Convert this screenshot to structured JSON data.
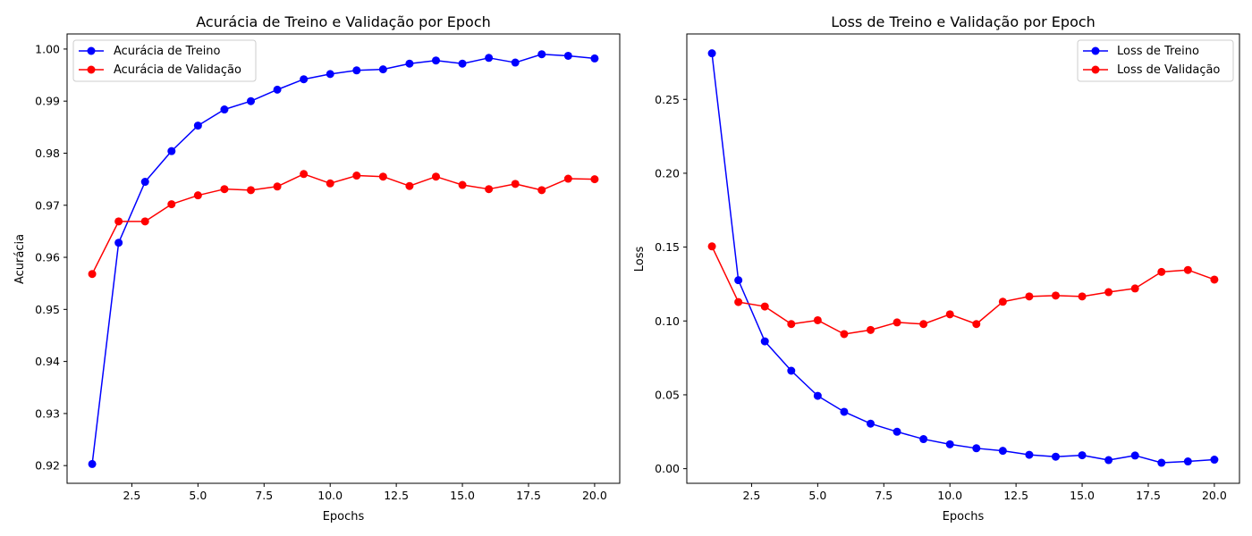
{
  "chart_data": [
    {
      "type": "line",
      "title": "Acurácia de Treino e Validação por Epoch",
      "xlabel": "Epochs",
      "ylabel": "Acurácia",
      "xlim": [
        0.05,
        20.95
      ],
      "ylim": [
        0.9166,
        1.0029
      ],
      "xticks": [
        2.5,
        5.0,
        7.5,
        10.0,
        12.5,
        15.0,
        17.5,
        20.0
      ],
      "xtick_labels": [
        "2.5",
        "5.0",
        "7.5",
        "10.0",
        "12.5",
        "15.0",
        "17.5",
        "20.0"
      ],
      "yticks": [
        0.92,
        0.93,
        0.94,
        0.95,
        0.96,
        0.97,
        0.98,
        0.99,
        1.0
      ],
      "ytick_labels": [
        "0.92",
        "0.93",
        "0.94",
        "0.95",
        "0.96",
        "0.97",
        "0.98",
        "0.99",
        "1.00"
      ],
      "grid": false,
      "legend_position": "top-left",
      "x": [
        1,
        2,
        3,
        4,
        5,
        6,
        7,
        8,
        9,
        10,
        11,
        12,
        13,
        14,
        15,
        16,
        17,
        18,
        19,
        20
      ],
      "series": [
        {
          "name": "Acurácia de Treino",
          "color": "#0000ff",
          "values": [
            0.9203,
            0.9628,
            0.9745,
            0.9804,
            0.9853,
            0.9884,
            0.99,
            0.9922,
            0.9942,
            0.9952,
            0.9959,
            0.9961,
            0.9972,
            0.9978,
            0.9972,
            0.9983,
            0.9974,
            0.999,
            0.9987,
            0.9982
          ]
        },
        {
          "name": "Acurácia de Validação",
          "color": "#ff0000",
          "values": [
            0.9568,
            0.9669,
            0.9669,
            0.9702,
            0.9719,
            0.9731,
            0.9729,
            0.9736,
            0.976,
            0.9742,
            0.9757,
            0.9755,
            0.9737,
            0.9755,
            0.9739,
            0.9731,
            0.9741,
            0.9729,
            0.9751,
            0.975
          ]
        }
      ]
    },
    {
      "type": "line",
      "title": "Loss de Treino e Validação por Epoch",
      "xlabel": "Epochs",
      "ylabel": "Loss",
      "xlim": [
        0.05,
        20.95
      ],
      "ylim": [
        -0.0099,
        0.2943
      ],
      "xticks": [
        2.5,
        5.0,
        7.5,
        10.0,
        12.5,
        15.0,
        17.5,
        20.0
      ],
      "xtick_labels": [
        "2.5",
        "5.0",
        "7.5",
        "10.0",
        "12.5",
        "15.0",
        "17.5",
        "20.0"
      ],
      "yticks": [
        0.0,
        0.05,
        0.1,
        0.15,
        0.2,
        0.25
      ],
      "ytick_labels": [
        "0.00",
        "0.05",
        "0.10",
        "0.15",
        "0.20",
        "0.25"
      ],
      "grid": false,
      "legend_position": "top-right",
      "x": [
        1,
        2,
        3,
        4,
        5,
        6,
        7,
        8,
        9,
        10,
        11,
        12,
        13,
        14,
        15,
        16,
        17,
        18,
        19,
        20
      ],
      "series": [
        {
          "name": "Loss de Treino",
          "color": "#0000ff",
          "values": [
            0.2812,
            0.1276,
            0.0862,
            0.0663,
            0.0493,
            0.0385,
            0.0305,
            0.025,
            0.02,
            0.0165,
            0.0138,
            0.0121,
            0.0094,
            0.0081,
            0.0091,
            0.0058,
            0.0089,
            0.004,
            0.0049,
            0.0061
          ]
        },
        {
          "name": "Loss de Validação",
          "color": "#ff0000",
          "values": [
            0.1505,
            0.1128,
            0.1098,
            0.0979,
            0.1005,
            0.0911,
            0.0939,
            0.099,
            0.0979,
            0.1045,
            0.0979,
            0.113,
            0.1166,
            0.1172,
            0.1166,
            0.1195,
            0.122,
            0.1332,
            0.1345,
            0.128
          ]
        }
      ]
    }
  ]
}
